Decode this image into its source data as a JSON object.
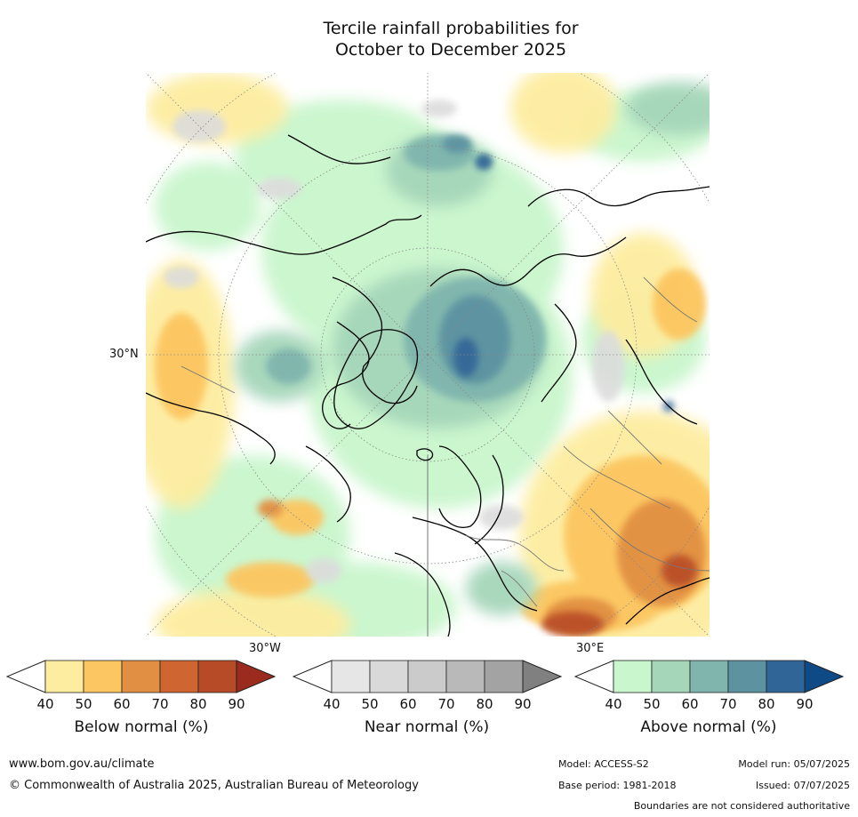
{
  "title": {
    "line1": "Tercile rainfall probabilities for",
    "line2": "October to December 2025"
  },
  "map": {
    "labels": {
      "lat_30n": "30°N",
      "lon_30w": "30°W",
      "lon_30e": "30°E"
    },
    "projection": "north polar stereographic"
  },
  "colorbars": [
    {
      "id": "below",
      "label": "Below normal (%)",
      "ticks": [
        "40",
        "50",
        "60",
        "70",
        "80",
        "90"
      ],
      "colors": [
        "#fdeda0",
        "#fcc661",
        "#e19043",
        "#cf6530",
        "#b84b27",
        "#9b2b1c"
      ]
    },
    {
      "id": "near",
      "label": "Near normal (%)",
      "ticks": [
        "40",
        "50",
        "60",
        "70",
        "80",
        "90"
      ],
      "colors": [
        "#e6e6e6",
        "#d9d9d9",
        "#cbcbcb",
        "#b9b9b9",
        "#a3a3a3",
        "#808080"
      ]
    },
    {
      "id": "above",
      "label": "Above normal (%)",
      "ticks": [
        "40",
        "50",
        "60",
        "70",
        "80",
        "90"
      ],
      "colors": [
        "#c9f6cc",
        "#a5d6b9",
        "#7fb5ad",
        "#5d93a1",
        "#306597",
        "#0e4a85"
      ]
    }
  ],
  "footer": {
    "url": "www.bom.gov.au/climate",
    "copyright": "© Commonwealth of Australia 2025, Australian Bureau of Meteorology",
    "model": "Model: ACCESS-S2",
    "model_run": "Model run: 05/07/2025",
    "base_period": "Base period: 1981-2018",
    "issued": "Issued: 07/07/2025",
    "disclaimer": "Boundaries are not considered authoritative"
  }
}
